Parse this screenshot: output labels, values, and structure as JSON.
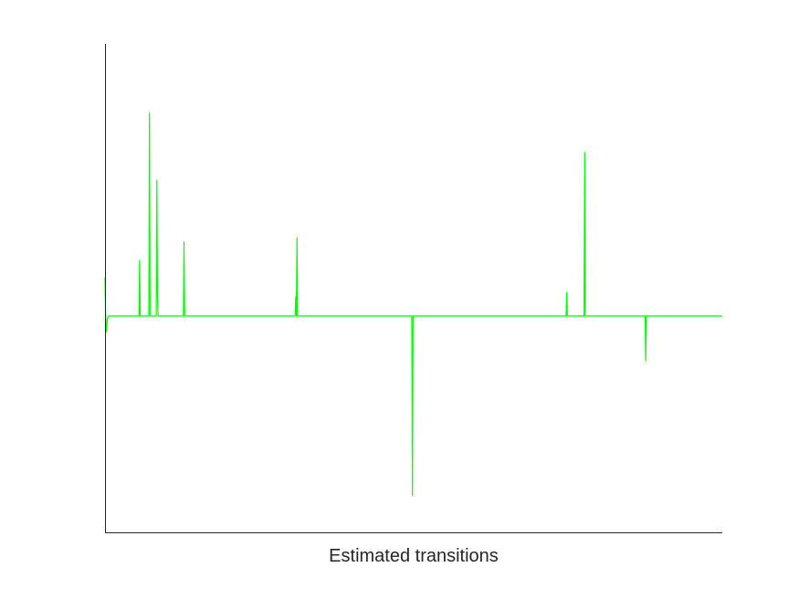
{
  "chart_data": {
    "type": "line",
    "title": "",
    "xlabel": "Estimated transitions",
    "ylabel": "",
    "xlim": [
      0,
      1000
    ],
    "ylim": [
      -1.0,
      1.0
    ],
    "grid": false,
    "legend": "none",
    "series": [
      {
        "color": "#00ff00",
        "x": [
          0,
          1,
          2,
          4,
          6,
          10,
          55,
          56,
          57,
          71,
          72,
          73,
          83,
          84,
          85,
          86,
          87,
          127,
          128,
          129,
          308,
          309,
          310,
          311,
          312,
          313,
          497,
          498,
          499,
          747,
          748,
          749,
          776,
          777,
          778,
          875,
          876,
          877,
          1000
        ],
        "y": [
          0.36,
          0.0,
          -0.15,
          -0.02,
          0.0,
          0.0,
          0.0,
          0.52,
          0.0,
          0.0,
          1.9,
          0.0,
          0.0,
          1.27,
          0.2,
          0.0,
          0.0,
          0.0,
          0.69,
          0.0,
          0.0,
          0.18,
          0.0,
          0.73,
          0.0,
          0.0,
          0.0,
          -1.68,
          0.0,
          0.0,
          0.22,
          0.0,
          0.0,
          1.53,
          0.0,
          0.0,
          -0.42,
          0.0,
          0.0
        ]
      }
    ]
  }
}
